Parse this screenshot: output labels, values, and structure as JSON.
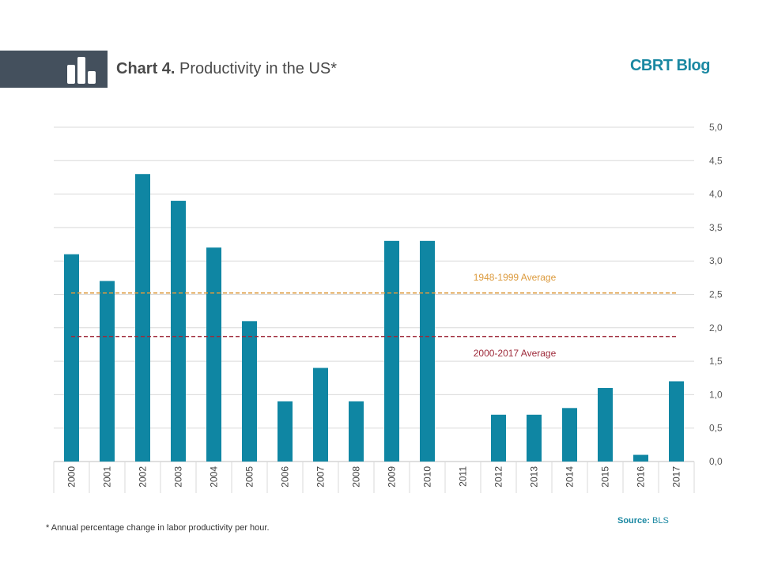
{
  "header": {
    "title_bold": "Chart 4.",
    "title_rest": "Productivity in the US*",
    "brand": "CBRT Blog",
    "icon": "bar-chart-icon"
  },
  "footer": {
    "footnote": "* Annual percentage  change in labor productivity per hour.",
    "source_label": "Source:",
    "source_value": "BLS"
  },
  "colors": {
    "bar": "#0f86a3",
    "avg_1948_1999": "#dc9a3c",
    "avg_2000_2017": "#9e2a3a",
    "grid": "#d9d9d9",
    "header_band": "#44505d",
    "brand": "#1a88a2"
  },
  "chart_data": {
    "type": "bar",
    "title": "Productivity in the US*",
    "categories": [
      "2000",
      "2001",
      "2002",
      "2003",
      "2004",
      "2005",
      "2006",
      "2007",
      "2008",
      "2009",
      "2010",
      "2011",
      "2012",
      "2013",
      "2014",
      "2015",
      "2016",
      "2017"
    ],
    "series": [
      {
        "values": [
          3.1,
          2.7,
          4.3,
          3.9,
          3.2,
          2.1,
          0.9,
          1.4,
          0.9,
          3.3,
          3.3,
          0.0,
          0.7,
          0.7,
          0.8,
          1.1,
          0.1,
          1.2
        ]
      }
    ],
    "reference_lines": [
      {
        "name": "1948-1999 Average",
        "value": 2.52,
        "style": "dashed"
      },
      {
        "name": "2000-2017 Average",
        "value": 1.87,
        "style": "dashed"
      }
    ],
    "ylim": [
      0,
      5
    ],
    "yticks": [
      "0,0",
      "0,5",
      "1,0",
      "1,5",
      "2,0",
      "2,5",
      "3,0",
      "3,5",
      "4,0",
      "4,5",
      "5,0"
    ],
    "yaxis_side": "right",
    "grid": true,
    "xlabel": "",
    "ylabel": ""
  }
}
